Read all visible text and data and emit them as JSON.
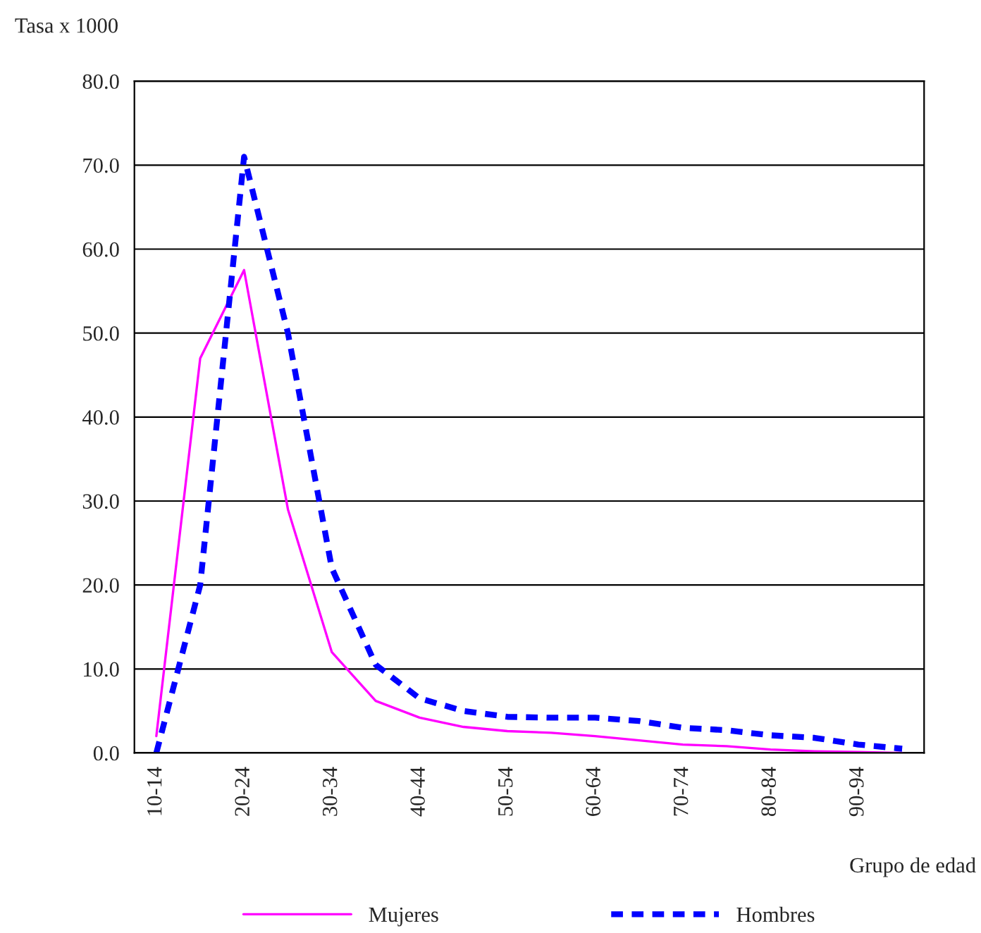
{
  "chart_data": {
    "type": "line",
    "ylabel": "Tasa x 1000",
    "xlabel": "Grupo de edad",
    "categories": [
      "10-14",
      null,
      "20-24",
      null,
      "30-34",
      null,
      "40-44",
      null,
      "50-54",
      null,
      "60-64",
      null,
      "70-74",
      null,
      "80-84",
      null,
      "90-94",
      null
    ],
    "series": [
      {
        "name": "Mujeres",
        "color": "#ff00ff",
        "line_style": "solid",
        "values": [
          2,
          47,
          57.5,
          29,
          12,
          6.2,
          4.2,
          3.1,
          2.6,
          2.4,
          2.0,
          1.5,
          1.0,
          0.8,
          0.4,
          0.2,
          0.1,
          0
        ]
      },
      {
        "name": "Hombres",
        "color": "#0000ff",
        "line_style": "dashed",
        "values": [
          0,
          20,
          71,
          50,
          22,
          10.5,
          6.5,
          5,
          4.3,
          4.2,
          4.2,
          3.8,
          3,
          2.7,
          2.1,
          1.8,
          1.0,
          0.5
        ]
      }
    ],
    "ylim": [
      0,
      80
    ],
    "yticks": [
      {
        "value": 0,
        "label": "0.0"
      },
      {
        "value": 10,
        "label": "10.0"
      },
      {
        "value": 20,
        "label": "20.0"
      },
      {
        "value": 30,
        "label": "30.0"
      },
      {
        "value": 40,
        "label": "40.0"
      },
      {
        "value": 50,
        "label": "50.0"
      },
      {
        "value": 60,
        "label": "60.0"
      },
      {
        "value": 70,
        "label": "70.0"
      },
      {
        "value": 80,
        "label": "80.0"
      }
    ],
    "grid": "y",
    "legend": "bottom",
    "marker": "none"
  }
}
